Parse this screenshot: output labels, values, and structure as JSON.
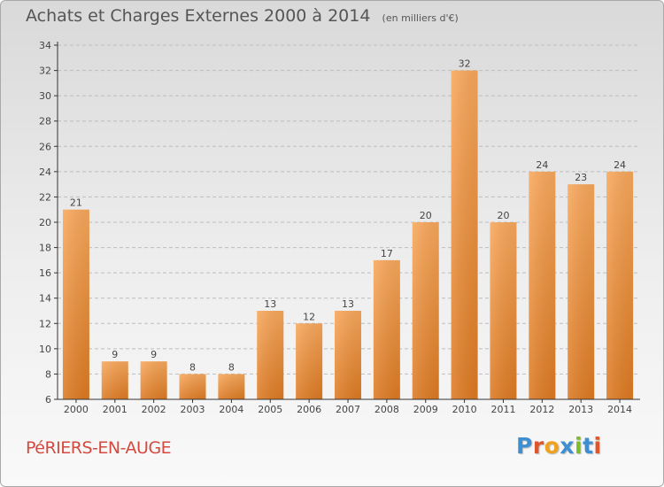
{
  "header": {
    "title": "Achats et Charges Externes 2000 à 2014",
    "unit": "(en milliers d'€)"
  },
  "place_name": "PéRIERS-EN-AUGE",
  "logo": {
    "text": "Proxiti",
    "colors": [
      "#3d8fd1",
      "#e0562c",
      "#f0a21f",
      "#3d8fd1",
      "#7dbd2c",
      "#3d8fd1",
      "#e0562c"
    ]
  },
  "colors": {
    "bar_light": "#f8a85c",
    "bar_dark": "#dd7a23",
    "axis": "#333333",
    "grid": "#bdbdbd",
    "text": "#444444"
  },
  "chart_data": {
    "type": "bar",
    "title": "Achats et Charges Externes 2000 à 2014",
    "subtitle": "(en milliers d'€)",
    "categories": [
      "2000",
      "2001",
      "2002",
      "2003",
      "2004",
      "2005",
      "2006",
      "2007",
      "2008",
      "2009",
      "2010",
      "2011",
      "2012",
      "2013",
      "2014"
    ],
    "values": [
      21,
      9,
      9,
      8,
      8,
      13,
      12,
      13,
      17,
      20,
      32,
      20,
      24,
      23,
      24
    ],
    "ylim": [
      6,
      34
    ],
    "yticks": [
      6,
      8,
      10,
      12,
      14,
      16,
      18,
      20,
      22,
      24,
      26,
      28,
      30,
      32,
      34
    ],
    "grid": true,
    "data_labels": true
  }
}
